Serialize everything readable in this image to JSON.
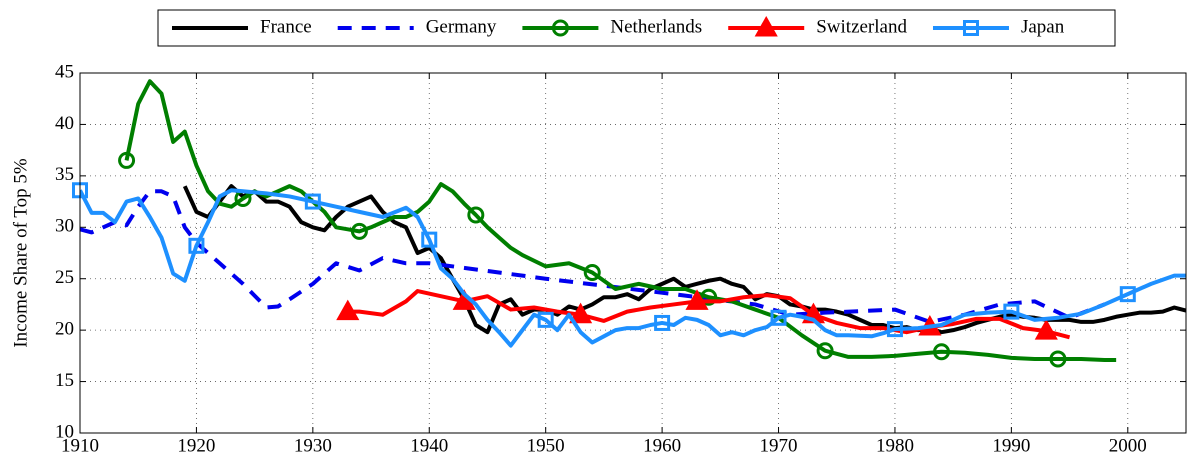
{
  "chart_data": {
    "type": "line",
    "y_label": "Income Share of Top 5%",
    "xlim": [
      1910,
      2005
    ],
    "xticks": [
      1910,
      1920,
      1930,
      1940,
      1950,
      1960,
      1970,
      1980,
      1990,
      2000
    ],
    "ylim": [
      10,
      45
    ],
    "yticks": [
      10,
      15,
      20,
      25,
      30,
      35,
      40,
      45
    ],
    "grid": true,
    "legend": "top",
    "series": [
      {
        "name": "France",
        "color": "#000000",
        "dash": "solid",
        "marker": "none",
        "x": [
          1919,
          1920,
          1921,
          1922,
          1923,
          1924,
          1925,
          1926,
          1927,
          1928,
          1929,
          1930,
          1931,
          1932,
          1933,
          1934,
          1935,
          1936,
          1937,
          1938,
          1939,
          1940,
          1941,
          1942,
          1943,
          1944,
          1945,
          1946,
          1947,
          1948,
          1949,
          1950,
          1951,
          1952,
          1953,
          1954,
          1955,
          1956,
          1957,
          1958,
          1959,
          1960,
          1961,
          1962,
          1963,
          1964,
          1965,
          1966,
          1967,
          1968,
          1969,
          1970,
          1971,
          1972,
          1973,
          1974,
          1975,
          1976,
          1977,
          1978,
          1979,
          1980,
          1981,
          1982,
          1983,
          1984,
          1985,
          1986,
          1987,
          1988,
          1989,
          1990,
          1991,
          1992,
          1993,
          1994,
          1995,
          1996,
          1997,
          1998,
          1999,
          2000,
          2001,
          2002,
          2003,
          2004,
          2005
        ],
        "values": [
          34,
          31.5,
          31,
          32.5,
          34,
          33,
          33.5,
          32.5,
          32.5,
          32,
          30.5,
          30,
          29.7,
          31,
          32,
          32.5,
          33,
          31.5,
          30.5,
          30,
          27.5,
          28,
          27,
          25,
          23,
          20.5,
          19.8,
          22.5,
          23,
          21.5,
          22,
          22,
          21.5,
          22.3,
          22,
          22.5,
          23.2,
          23.2,
          23.5,
          23,
          24,
          24.5,
          25,
          24.2,
          24.5,
          24.8,
          25,
          24.5,
          24.2,
          23,
          23.5,
          23.3,
          22.5,
          22.3,
          22,
          22,
          21.8,
          21.5,
          21,
          20.5,
          20.5,
          20.2,
          20.3,
          20,
          20.2,
          19.8,
          20,
          20.3,
          20.7,
          21,
          21.3,
          21.5,
          21.3,
          21.2,
          21,
          21,
          21,
          20.8,
          20.8,
          21,
          21.3,
          21.5,
          21.7,
          21.7,
          21.8,
          22.2,
          21.9
        ]
      },
      {
        "name": "Germany",
        "color": "#0000ee",
        "dash": "dashed",
        "marker": "none",
        "x": [
          1910,
          1911,
          1912,
          1913,
          1914,
          1915,
          1916,
          1917,
          1918,
          1919,
          1920,
          1922,
          1924,
          1926,
          1927,
          1928,
          1930,
          1932,
          1934,
          1936,
          1938,
          1940,
          1950,
          1961,
          1968,
          1971,
          1974,
          1980,
          1983,
          1986,
          1989,
          1992,
          1995,
          1998
        ],
        "values": [
          29.8,
          29.5,
          30,
          30.5,
          30.2,
          32,
          33.5,
          33.5,
          33,
          30,
          28.5,
          26.5,
          24.5,
          22.2,
          22.3,
          23,
          24.5,
          26.5,
          25.8,
          27,
          26.5,
          26.5,
          25,
          23.5,
          22.5,
          21.5,
          21.7,
          22,
          20.8,
          21.5,
          22.5,
          22.8,
          21.2,
          22.5
        ]
      },
      {
        "name": "Netherlands",
        "color": "#007f00",
        "dash": "solid",
        "marker": "circle",
        "x": [
          1914,
          1915,
          1916,
          1917,
          1918,
          1919,
          1920,
          1921,
          1922,
          1923,
          1924,
          1925,
          1926,
          1927,
          1928,
          1929,
          1930,
          1931,
          1932,
          1933,
          1934,
          1935,
          1936,
          1937,
          1938,
          1939,
          1940,
          1941,
          1942,
          1943,
          1944,
          1945,
          1946,
          1947,
          1948,
          1950,
          1952,
          1954,
          1956,
          1958,
          1960,
          1962,
          1964,
          1966,
          1968,
          1970,
          1972,
          1974,
          1976,
          1978,
          1980,
          1982,
          1984,
          1986,
          1988,
          1990,
          1992,
          1994,
          1996,
          1998,
          1999
        ],
        "values": [
          36.5,
          42,
          44.2,
          43,
          38.3,
          39.3,
          36,
          33.5,
          32.3,
          32,
          32.8,
          33.5,
          33,
          33.5,
          34,
          33.5,
          32.5,
          31.5,
          30,
          29.8,
          29.6,
          30,
          30.5,
          31,
          31,
          31.5,
          32.5,
          34.2,
          33.5,
          32.3,
          31.2,
          30,
          29,
          28,
          27.3,
          26.2,
          26.5,
          25.6,
          24,
          24.5,
          24,
          24,
          23.2,
          22.8,
          22,
          21.2,
          19.5,
          18,
          17.4,
          17.4,
          17.5,
          17.7,
          17.9,
          17.8,
          17.6,
          17.3,
          17.2,
          17.2,
          17.2,
          17.1,
          17.1
        ]
      },
      {
        "name": "Switzerland",
        "color": "#ff0000",
        "dash": "solid",
        "marker": "triangle",
        "x": [
          1933,
          1934,
          1936,
          1938,
          1939,
          1941,
          1943,
          1945,
          1947,
          1949,
          1951,
          1953,
          1955,
          1957,
          1959,
          1961,
          1963,
          1965,
          1967,
          1969,
          1971,
          1973,
          1975,
          1977,
          1979,
          1981,
          1983,
          1985,
          1987,
          1989,
          1991,
          1993,
          1995
        ],
        "values": [
          21.8,
          21.8,
          21.5,
          22.8,
          23.8,
          23.3,
          22.8,
          23.3,
          22,
          22.2,
          21.8,
          21.5,
          20.9,
          21.8,
          22.2,
          22.5,
          22.8,
          22.8,
          23.2,
          23.4,
          23.1,
          21.5,
          20.7,
          20.2,
          20.2,
          19.8,
          20.3,
          20.6,
          21.1,
          21.1,
          20.2,
          19.9,
          19.3
        ]
      },
      {
        "name": "Japan",
        "color": "#1e90ff",
        "dash": "solid",
        "marker": "square",
        "x": [
          1910,
          1911,
          1912,
          1913,
          1914,
          1915,
          1916,
          1917,
          1918,
          1919,
          1920,
          1921,
          1922,
          1923,
          1924,
          1926,
          1928,
          1930,
          1932,
          1934,
          1936,
          1938,
          1939,
          1940,
          1941,
          1942,
          1943,
          1944,
          1945,
          1946,
          1947,
          1948,
          1949,
          1950,
          1951,
          1952,
          1953,
          1954,
          1955,
          1956,
          1957,
          1958,
          1959,
          1960,
          1961,
          1962,
          1963,
          1964,
          1965,
          1966,
          1967,
          1968,
          1969,
          1970,
          1971,
          1972,
          1973,
          1974,
          1975,
          1976,
          1978,
          1979,
          1980,
          1982,
          1984,
          1986,
          1988,
          1990,
          1992,
          1994,
          1996,
          1998,
          2000,
          2002,
          2004,
          2005
        ],
        "values": [
          33.6,
          31.4,
          31.4,
          30.5,
          32.5,
          32.8,
          31,
          29,
          25.5,
          24.8,
          28.2,
          30.5,
          33,
          33.6,
          33.5,
          33.3,
          33,
          32.5,
          32,
          31.5,
          31,
          31.9,
          31,
          28.8,
          26,
          25,
          23.5,
          22.5,
          21,
          19.8,
          18.5,
          20,
          21.5,
          21,
          20,
          21.5,
          19.8,
          18.8,
          19.4,
          20,
          20.2,
          20.2,
          20.5,
          20.7,
          20.5,
          21.2,
          21,
          20.5,
          19.5,
          19.8,
          19.5,
          20,
          20.3,
          21.2,
          21.5,
          21.3,
          21,
          20,
          19.5,
          19.5,
          19.4,
          19.7,
          20.1,
          20.2,
          20.5,
          21.5,
          21.7,
          21.8,
          21,
          21.2,
          21.6,
          22.5,
          23.5,
          24.5,
          25.3,
          25.3
        ]
      }
    ]
  }
}
